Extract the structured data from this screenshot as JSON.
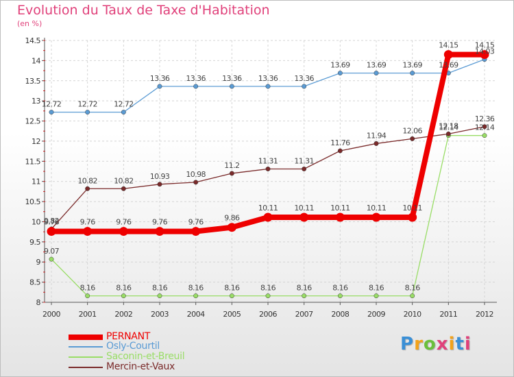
{
  "header": {
    "title": "Evolution du Taux de Taxe d'Habitation",
    "subtitle": "(en %)"
  },
  "logo": {
    "text": "Proxiti",
    "letter_colors": [
      "#3a8fd6",
      "#f2a21a",
      "#6abf3c",
      "#e0407a",
      "#f2a21a",
      "#3a8fd6",
      "#e0407a"
    ]
  },
  "chart_data": {
    "type": "line",
    "title": "Evolution du Taux de Taxe d'Habitation",
    "subtitle": "(en %)",
    "xlabel": "",
    "ylabel": "(en %)",
    "x": [
      "2000",
      "2001",
      "2002",
      "2003",
      "2004",
      "2005",
      "2006",
      "2007",
      "2008",
      "2009",
      "2010",
      "2011",
      "2012"
    ],
    "ylim": [
      8,
      14.5
    ],
    "yticks": [
      "8",
      "8.5",
      "9",
      "9.5",
      "10",
      "10.5",
      "11",
      "11.5",
      "12",
      "12.5",
      "13",
      "13.5",
      "14",
      "14.5"
    ],
    "ytick_values": [
      8,
      8.5,
      9,
      9.5,
      10,
      10.5,
      11,
      11.5,
      12,
      12.5,
      13,
      13.5,
      14,
      14.5
    ],
    "grid": true,
    "legend_position": "bottom-left",
    "series": [
      {
        "name": "PERNANT",
        "color": "#ee0000",
        "emphasis": true,
        "values": [
          9.76,
          9.76,
          9.76,
          9.76,
          9.76,
          9.86,
          10.11,
          10.11,
          10.11,
          10.11,
          10.11,
          14.15,
          14.15
        ],
        "labels": [
          "9.76",
          "9.76",
          "9.76",
          "9.76",
          "9.76",
          "9.86",
          "10.11",
          "10.11",
          "10.11",
          "10.11",
          "10.11",
          "14.15",
          "14.15"
        ]
      },
      {
        "name": "Osly-Courtil",
        "color": "#5a9bd4",
        "values": [
          12.72,
          12.72,
          12.72,
          13.36,
          13.36,
          13.36,
          13.36,
          13.36,
          13.69,
          13.69,
          13.69,
          13.69,
          14.03
        ],
        "labels": [
          "12.72",
          "12.72",
          "12.72",
          "13.36",
          "13.36",
          "13.36",
          "13.36",
          "13.36",
          "13.69",
          "13.69",
          "13.69",
          "13.69",
          "14.03"
        ]
      },
      {
        "name": "Saconin-et-Breuil",
        "color": "#99dd66",
        "values": [
          9.07,
          8.16,
          8.16,
          8.16,
          8.16,
          8.16,
          8.16,
          8.16,
          8.16,
          8.16,
          8.16,
          12.14,
          12.14
        ],
        "labels": [
          "9.07",
          "8.16",
          "8.16",
          "8.16",
          "8.16",
          "8.16",
          "8.16",
          "8.16",
          "8.16",
          "8.16",
          "8.16",
          "12.14",
          "12.14"
        ]
      },
      {
        "name": "Mercin-et-Vaux",
        "color": "#7a2a2a",
        "values": [
          9.82,
          10.82,
          10.82,
          10.93,
          10.98,
          11.2,
          11.31,
          11.31,
          11.76,
          11.94,
          12.06,
          12.18,
          12.36
        ],
        "labels": [
          "9.82",
          "10.82",
          "10.82",
          "10.93",
          "10.98",
          "11.2",
          "11.31",
          "11.31",
          "11.76",
          "11.94",
          "12.06",
          "12.18",
          "12.36"
        ]
      }
    ]
  }
}
